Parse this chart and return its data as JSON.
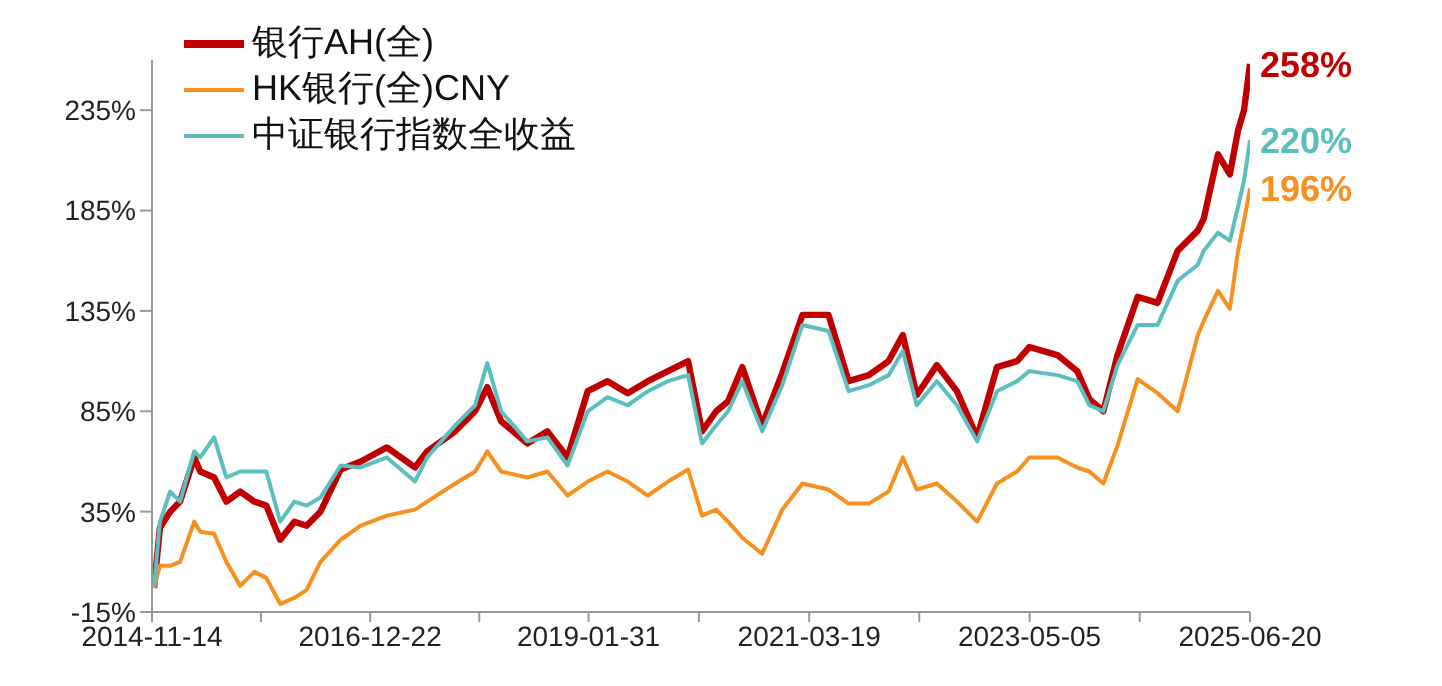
{
  "chart_data": {
    "type": "line",
    "x": [
      "2014-11-21",
      "2014-12-12",
      "2015-01-17",
      "2015-02-21",
      "2015-04-12",
      "2015-05-03",
      "2015-06-21",
      "2015-08-03",
      "2015-09-21",
      "2015-11-10",
      "2015-12-22",
      "2016-02-09",
      "2016-03-30",
      "2016-05-12",
      "2016-06-30",
      "2016-09-09",
      "2016-11-19",
      "2017-02-19",
      "2017-05-29",
      "2017-07-11",
      "2017-10-18",
      "2017-12-27",
      "2018-02-08",
      "2018-03-29",
      "2018-06-29",
      "2018-09-08",
      "2018-11-18",
      "2019-01-28",
      "2019-04-08",
      "2019-06-18",
      "2019-08-28",
      "2019-11-07",
      "2020-01-17",
      "2020-03-06",
      "2020-04-25",
      "2020-06-06",
      "2020-07-26",
      "2020-10-04",
      "2020-12-14",
      "2021-02-23",
      "2021-05-26",
      "2021-08-05",
      "2021-10-15",
      "2021-12-24",
      "2022-02-12",
      "2022-04-02",
      "2022-06-12",
      "2022-08-22",
      "2022-11-01",
      "2023-01-10",
      "2023-03-22",
      "2023-05-04",
      "2023-08-11",
      "2023-10-20",
      "2023-12-02",
      "2024-01-20",
      "2024-03-10",
      "2024-05-20",
      "2024-07-29",
      "2024-10-08",
      "2024-12-18",
      "2025-01-08",
      "2025-02-27",
      "2025-04-10",
      "2025-05-09",
      "2025-05-30",
      "2025-06-20"
    ],
    "series": [
      {
        "name": "银行AH(全)",
        "color": "#c00000",
        "values": [
          -3,
          27,
          35,
          40,
          62,
          55,
          52,
          40,
          45,
          40,
          38,
          21,
          30,
          28,
          35,
          56,
          60,
          67,
          57,
          65,
          75,
          85,
          97,
          80,
          69,
          75,
          62,
          95,
          100,
          94,
          100,
          105,
          110,
          75,
          85,
          90,
          107,
          78,
          104,
          133,
          133,
          100,
          103,
          110,
          123,
          93,
          108,
          95,
          72,
          107,
          110,
          117,
          113,
          105,
          91,
          85,
          113,
          142,
          139,
          165,
          175,
          181,
          213,
          203,
          225,
          235,
          258
        ]
      },
      {
        "name": "HK银行(全)CNY",
        "color": "#f7901e",
        "values": [
          -3,
          8,
          8,
          10,
          30,
          25,
          24,
          10,
          -2,
          5,
          2,
          -11,
          -8,
          -4,
          10,
          21,
          28,
          33,
          36,
          40,
          49,
          55,
          65,
          55,
          52,
          55,
          43,
          50,
          55,
          50,
          43,
          50,
          56,
          33,
          36,
          30,
          22,
          14,
          36,
          49,
          46,
          39,
          39,
          45,
          62,
          46,
          49,
          40,
          30,
          49,
          55,
          62,
          62,
          57,
          55,
          49,
          68,
          101,
          94,
          85,
          123,
          130,
          145,
          136,
          165,
          180,
          196
        ]
      },
      {
        "name": "中证银行指数全收益",
        "color": "#5bbfc0",
        "values": [
          -3,
          30,
          45,
          40,
          65,
          62,
          72,
          52,
          55,
          55,
          55,
          30,
          40,
          38,
          42,
          58,
          57,
          62,
          50,
          62,
          78,
          88,
          109,
          85,
          70,
          72,
          58,
          85,
          92,
          88,
          95,
          100,
          103,
          69,
          78,
          85,
          100,
          75,
          98,
          128,
          125,
          95,
          98,
          103,
          115,
          88,
          100,
          88,
          70,
          95,
          100,
          105,
          103,
          100,
          88,
          85,
          108,
          128,
          128,
          150,
          158,
          165,
          174,
          170,
          187,
          200,
          220
        ]
      }
    ],
    "xlim": [
      "2014-11-14",
      "2025-06-20"
    ],
    "xticks": [
      {
        "value": "2014-11-14",
        "label": "2014-11-14"
      },
      {
        "value": "2015-12-03",
        "label": null
      },
      {
        "value": "2016-12-22",
        "label": "2016-12-22"
      },
      {
        "value": "2018-01-11",
        "label": null
      },
      {
        "value": "2019-01-31",
        "label": "2019-01-31"
      },
      {
        "value": "2020-02-24",
        "label": null
      },
      {
        "value": "2021-03-19",
        "label": "2021-03-19"
      },
      {
        "value": "2022-04-11",
        "label": null
      },
      {
        "value": "2023-05-05",
        "label": "2023-05-05"
      },
      {
        "value": "2024-05-27",
        "label": null
      },
      {
        "value": "2025-06-20",
        "label": "2025-06-20"
      }
    ],
    "ylim": [
      -15,
      260
    ],
    "yticks": [
      {
        "value": -15,
        "label": "-15%"
      },
      {
        "value": 35,
        "label": "35%"
      },
      {
        "value": 85,
        "label": "85%"
      },
      {
        "value": 135,
        "label": "135%"
      },
      {
        "value": 185,
        "label": "185%"
      },
      {
        "value": 235,
        "label": "235%"
      }
    ],
    "annotations": [
      {
        "text": "258%",
        "x": "2025-06-20",
        "y": 258
      },
      {
        "text": "196%",
        "x": "2025-06-20",
        "y": 196
      },
      {
        "text": "220%",
        "x": "2025-06-20",
        "y": 220
      }
    ],
    "legend": "top left",
    "grid": false,
    "marker": "none",
    "line_style": "solid"
  }
}
